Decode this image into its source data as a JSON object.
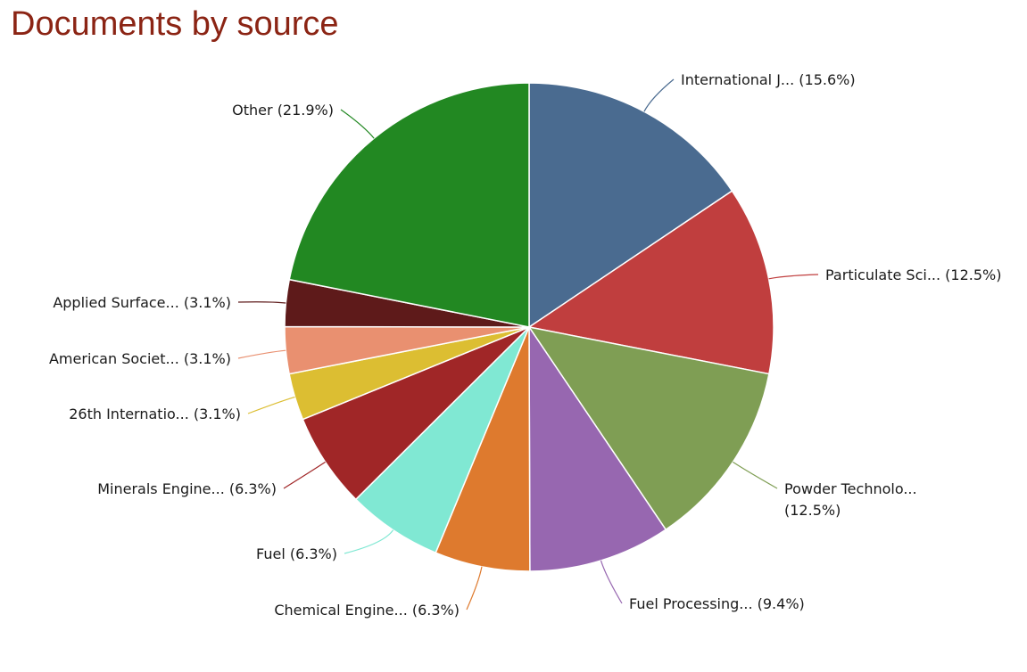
{
  "chart_data": {
    "type": "pie",
    "title": "Documents by source",
    "slices": [
      {
        "label": "International J...",
        "percent_label": "(15.6%)",
        "value": 15.6,
        "color": "#4a6b90"
      },
      {
        "label": "Particulate Sci...",
        "percent_label": "(12.5%)",
        "value": 12.5,
        "color": "#c03e3e"
      },
      {
        "label": "Powder Technolo...",
        "percent_label": "(12.5%)",
        "value": 12.5,
        "color": "#7f9e54"
      },
      {
        "label": "Fuel Processing...",
        "percent_label": "(9.4%)",
        "value": 9.4,
        "color": "#9767b0"
      },
      {
        "label": "Chemical Engine...",
        "percent_label": "(6.3%)",
        "value": 6.3,
        "color": "#de7a2e"
      },
      {
        "label": "Fuel",
        "percent_label": "(6.3%)",
        "value": 6.3,
        "color": "#80e8d3"
      },
      {
        "label": "Minerals Engine...",
        "percent_label": "(6.3%)",
        "value": 6.3,
        "color": "#a02627"
      },
      {
        "label": "26th Internatio...",
        "percent_label": "(3.1%)",
        "value": 3.1,
        "color": "#dcbe32"
      },
      {
        "label": "American Societ...",
        "percent_label": "(3.1%)",
        "value": 3.1,
        "color": "#e99070"
      },
      {
        "label": "Applied Surface...",
        "percent_label": "(3.1%)",
        "value": 3.1,
        "color": "#5e1a1a"
      },
      {
        "label": "Other",
        "percent_label": "(21.9%)",
        "value": 21.9,
        "color": "#228822"
      }
    ]
  }
}
